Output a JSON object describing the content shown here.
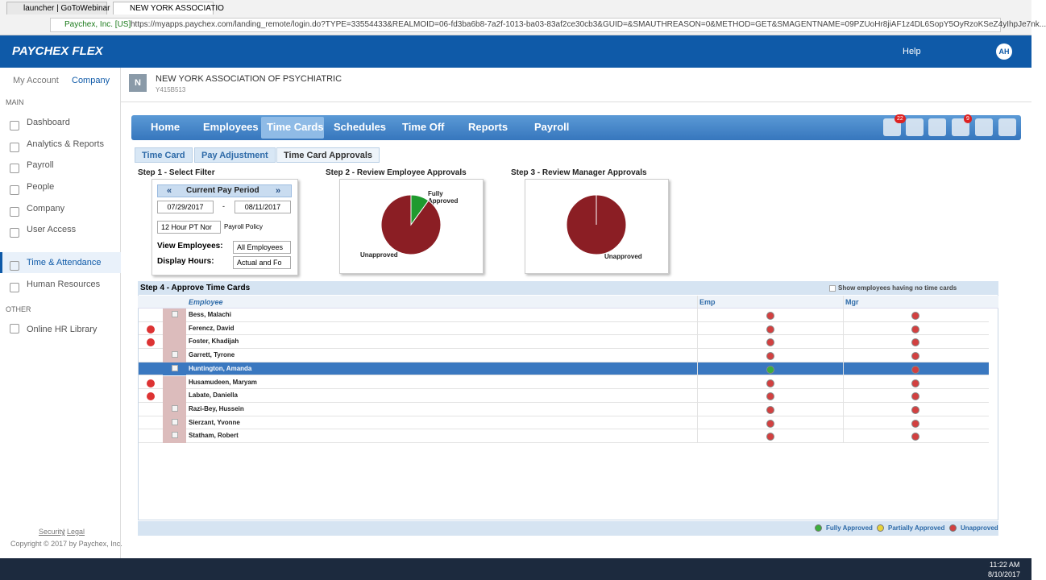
{
  "browser": {
    "tabs": [
      "launcher | GoToWebinar",
      "NEW YORK ASSOCIATIO"
    ],
    "site": "Paychex, Inc. [US]",
    "url": "https://myapps.paychex.com/landing_remote/login.do?TYPE=33554433&REALMOID=06-fd3ba6b8-7a2f-1013-ba03-83af2ce30cb3&GUID=&SMAUTHREASON=0&METHOD=GET&SMAGENTNAME=09PZUoHr8jiAF1z4DL6SopY5OyRzoKSeZ4yIhpJe7nk..."
  },
  "header": {
    "logo": "PAYCHEX FLEX",
    "help": "Help",
    "avatar": "AH"
  },
  "sidebar": {
    "tabs": [
      "My Account",
      "Company"
    ],
    "main_label": "MAIN",
    "items": [
      "Dashboard",
      "Analytics & Reports",
      "Payroll",
      "People",
      "Company",
      "User Access",
      "Time & Attendance",
      "Human Resources"
    ],
    "active": 6,
    "other_label": "OTHER",
    "other_items": [
      "Online HR Library"
    ],
    "links": [
      "Security",
      "Legal"
    ],
    "separator": "|",
    "copyright": "Copyright © 2017 by Paychex, Inc."
  },
  "company": {
    "initial": "N",
    "name": "NEW YORK ASSOCIATION OF PSYCHIATRIC",
    "id": "Y415B513"
  },
  "nav": {
    "items": [
      "Home",
      "Employees",
      "Time Cards",
      "Schedules",
      "Time Off",
      "Reports",
      "Payroll"
    ],
    "active": 2,
    "badges": [
      "22",
      "9"
    ]
  },
  "subtabs": {
    "items": [
      "Time Card",
      "Pay Adjustment",
      "Time Card Approvals"
    ],
    "active": 2
  },
  "step1": {
    "title": "Step 1 - Select Filter",
    "period": "Current Pay Period",
    "prev": "«",
    "next": "»",
    "start": "07/29/2017",
    "dash": "-",
    "end": "08/11/2017",
    "policy": "12 Hour PT Nor",
    "policy_label": "Payroll Policy",
    "view_label": "View Employees:",
    "view": "All Employees",
    "hours_label": "Display Hours:",
    "hours": "Actual and Fo"
  },
  "step2": {
    "title": "Step 2 - Review Employee Approvals",
    "chart": {
      "type": "pie",
      "slices": [
        {
          "label": "Fully Approved",
          "value": 10,
          "color": "#1f9a2e"
        },
        {
          "label": "Unapproved",
          "value": 90,
          "color": "#8b1e24"
        }
      ]
    }
  },
  "step3": {
    "title": "Step 3 - Review Manager Approvals",
    "chart": {
      "type": "pie",
      "slices": [
        {
          "label": "Unapproved",
          "value": 100,
          "color": "#8b1e24"
        }
      ]
    }
  },
  "step4": {
    "title": "Step 4 - Approve Time Cards",
    "show_empty": "Show employees having no time cards",
    "columns": [
      "Employee",
      "Emp",
      "Mgr"
    ],
    "rows": [
      {
        "name": "Bess, Malachi",
        "stop": false,
        "emp": "unapproved",
        "mgr": "unapproved"
      },
      {
        "name": "Ferencz, David",
        "stop": true,
        "emp": "unapproved",
        "mgr": "unapproved"
      },
      {
        "name": "Foster, Khadijah",
        "stop": true,
        "emp": "unapproved",
        "mgr": "unapproved"
      },
      {
        "name": "Garrett, Tyrone",
        "stop": false,
        "emp": "unapproved",
        "mgr": "unapproved"
      },
      {
        "name": "Huntington, Amanda",
        "stop": false,
        "emp": "approved",
        "mgr": "unapproved",
        "selected": true
      },
      {
        "name": "Husamudeen, Maryam",
        "stop": true,
        "emp": "unapproved",
        "mgr": "unapproved"
      },
      {
        "name": "Labate, Daniella",
        "stop": true,
        "emp": "unapproved",
        "mgr": "unapproved"
      },
      {
        "name": "Razi-Bey, Hussein",
        "stop": false,
        "emp": "unapproved",
        "mgr": "unapproved"
      },
      {
        "name": "Sierzant, Yvonne",
        "stop": false,
        "emp": "unapproved",
        "mgr": "unapproved"
      },
      {
        "name": "Statham, Robert",
        "stop": false,
        "emp": "unapproved",
        "mgr": "unapproved"
      }
    ]
  },
  "legend": [
    {
      "label": "Fully Approved",
      "color": "#3cae3c"
    },
    {
      "label": "Partially Approved",
      "color": "#e8d23a"
    },
    {
      "label": "Unapproved",
      "color": "#d24040"
    }
  ],
  "taskbar": {
    "time": "11:22 AM",
    "date": "8/10/2017"
  }
}
